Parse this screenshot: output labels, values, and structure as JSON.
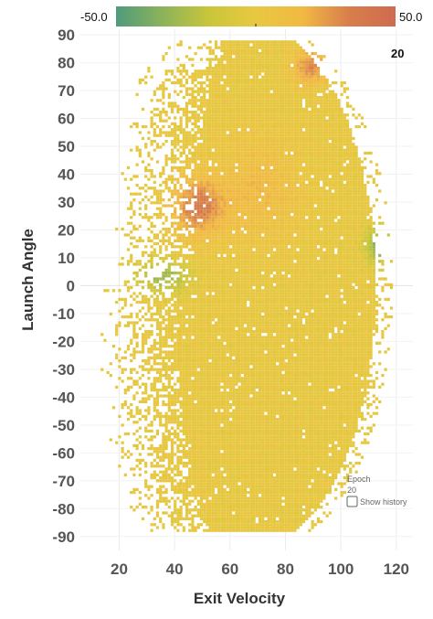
{
  "chart_data": {
    "type": "heatmap",
    "title": "",
    "xlabel": "Exit Velocity",
    "ylabel": "Launch Angle",
    "xlim": [
      6,
      126
    ],
    "ylim": [
      -95,
      92
    ],
    "x_ticks": [
      20,
      40,
      60,
      80,
      100,
      120
    ],
    "y_ticks": [
      90,
      80,
      70,
      60,
      50,
      40,
      30,
      20,
      10,
      0,
      -10,
      -20,
      -30,
      -40,
      -50,
      -60,
      -70,
      -80,
      -90
    ],
    "grid": true,
    "color_scale": {
      "min": -50.0,
      "max": 50.0,
      "min_label": "-50.0",
      "max_label": "50.0",
      "colors": [
        "#4f9a7d",
        "#8cb35a",
        "#c9c63a",
        "#e8c840",
        "#f1b943",
        "#d87e4c",
        "#cf6a4f"
      ]
    },
    "density_regions": [
      {
        "region": "bulk",
        "x_range": [
          20,
          112
        ],
        "y_range": [
          -88,
          88
        ],
        "value": 0
      },
      {
        "region": "high_launch_band",
        "x_range": [
          55,
          85
        ],
        "y_range": [
          15,
          55
        ],
        "value": 15
      },
      {
        "region": "hot_spot_mid",
        "x_range": [
          38,
          58
        ],
        "y_range": [
          18,
          40
        ],
        "value": 35
      },
      {
        "region": "hot_spot_upper",
        "x_range": [
          82,
          95
        ],
        "y_range": [
          72,
          86
        ],
        "value": 30
      },
      {
        "region": "cool_spot_lower_left",
        "x_range": [
          25,
          45
        ],
        "y_range": [
          -2,
          10
        ],
        "value": -30
      },
      {
        "region": "cool_spot_right",
        "x_range": [
          108,
          118
        ],
        "y_range": [
          8,
          22
        ],
        "value": -35
      }
    ],
    "legend_position": "top"
  },
  "epoch_badge": "20",
  "epoch_control": {
    "label": "Epoch",
    "value": "20",
    "show_history_label": "Show history",
    "show_history_checked": false
  }
}
